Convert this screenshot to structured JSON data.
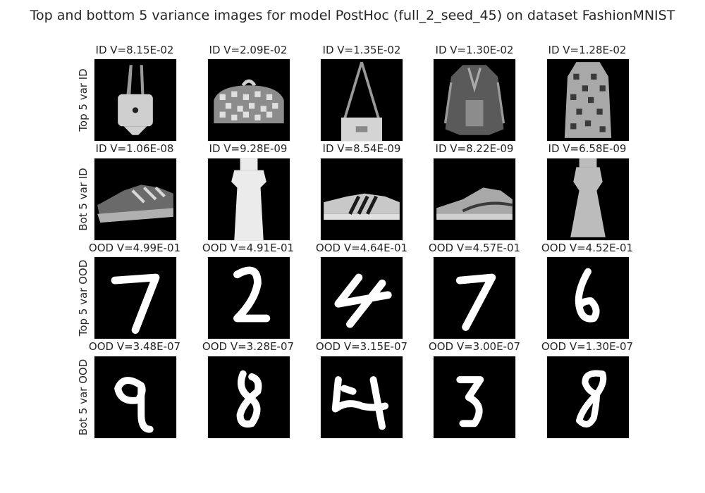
{
  "figure": {
    "title": "Top and bottom 5 variance images for model PostHoc (full_2_seed_45) on dataset FashionMNIST"
  },
  "rows": [
    {
      "label": "Top 5 var ID",
      "cells": [
        {
          "title": "ID V=8.15E-02",
          "content": "handbag"
        },
        {
          "title": "ID V=2.09E-02",
          "content": "patterned clutch bag"
        },
        {
          "title": "ID V=1.35E-02",
          "content": "shoulder bag"
        },
        {
          "title": "ID V=1.30E-02",
          "content": "coat"
        },
        {
          "title": "ID V=1.28E-02",
          "content": "patterned dress"
        }
      ]
    },
    {
      "label": "Bot 5 var ID",
      "cells": [
        {
          "title": "ID V=1.06E-08",
          "content": "sneaker"
        },
        {
          "title": "ID V=9.28E-09",
          "content": "dress"
        },
        {
          "title": "ID V=8.54E-09",
          "content": "striped sneaker"
        },
        {
          "title": "ID V=8.22E-09",
          "content": "sneaker"
        },
        {
          "title": "ID V=6.58E-09",
          "content": "dress"
        }
      ]
    },
    {
      "label": "Top 5 var OOD",
      "cells": [
        {
          "title": "OOD V=4.99E-01",
          "content": "digit 7"
        },
        {
          "title": "OOD V=4.91E-01",
          "content": "digit 2"
        },
        {
          "title": "OOD V=4.64E-01",
          "content": "digit 4"
        },
        {
          "title": "OOD V=4.57E-01",
          "content": "digit 7"
        },
        {
          "title": "OOD V=4.52E-01",
          "content": "digit 6"
        }
      ]
    },
    {
      "label": "Bot 5 var OOD",
      "cells": [
        {
          "title": "OOD V=3.48E-07",
          "content": "digit 9"
        },
        {
          "title": "OOD V=3.28E-07",
          "content": "digit 8"
        },
        {
          "title": "OOD V=3.15E-07",
          "content": "digit 4"
        },
        {
          "title": "OOD V=3.00E-07",
          "content": "digit 3"
        },
        {
          "title": "OOD V=1.30E-07",
          "content": "digit 8"
        }
      ]
    }
  ],
  "chart_data": {
    "type": "image-grid",
    "title": "Top and bottom 5 variance images for model PostHoc (full_2_seed_45) on dataset FashionMNIST",
    "row_labels": [
      "Top 5 var ID",
      "Bot 5 var ID",
      "Top 5 var OOD",
      "Bot 5 var OOD"
    ],
    "cells": [
      [
        {
          "set": "ID",
          "variance": 0.0815
        },
        {
          "set": "ID",
          "variance": 0.0209
        },
        {
          "set": "ID",
          "variance": 0.0135
        },
        {
          "set": "ID",
          "variance": 0.013
        },
        {
          "set": "ID",
          "variance": 0.0128
        }
      ],
      [
        {
          "set": "ID",
          "variance": 1.06e-08
        },
        {
          "set": "ID",
          "variance": 9.28e-09
        },
        {
          "set": "ID",
          "variance": 8.54e-09
        },
        {
          "set": "ID",
          "variance": 8.22e-09
        },
        {
          "set": "ID",
          "variance": 6.58e-09
        }
      ],
      [
        {
          "set": "OOD",
          "variance": 0.499
        },
        {
          "set": "OOD",
          "variance": 0.491
        },
        {
          "set": "OOD",
          "variance": 0.464
        },
        {
          "set": "OOD",
          "variance": 0.457
        },
        {
          "set": "OOD",
          "variance": 0.452
        }
      ],
      [
        {
          "set": "OOD",
          "variance": 3.48e-07
        },
        {
          "set": "OOD",
          "variance": 3.28e-07
        },
        {
          "set": "OOD",
          "variance": 3.15e-07
        },
        {
          "set": "OOD",
          "variance": 3e-07
        },
        {
          "set": "OOD",
          "variance": 1.3e-07
        }
      ]
    ]
  }
}
